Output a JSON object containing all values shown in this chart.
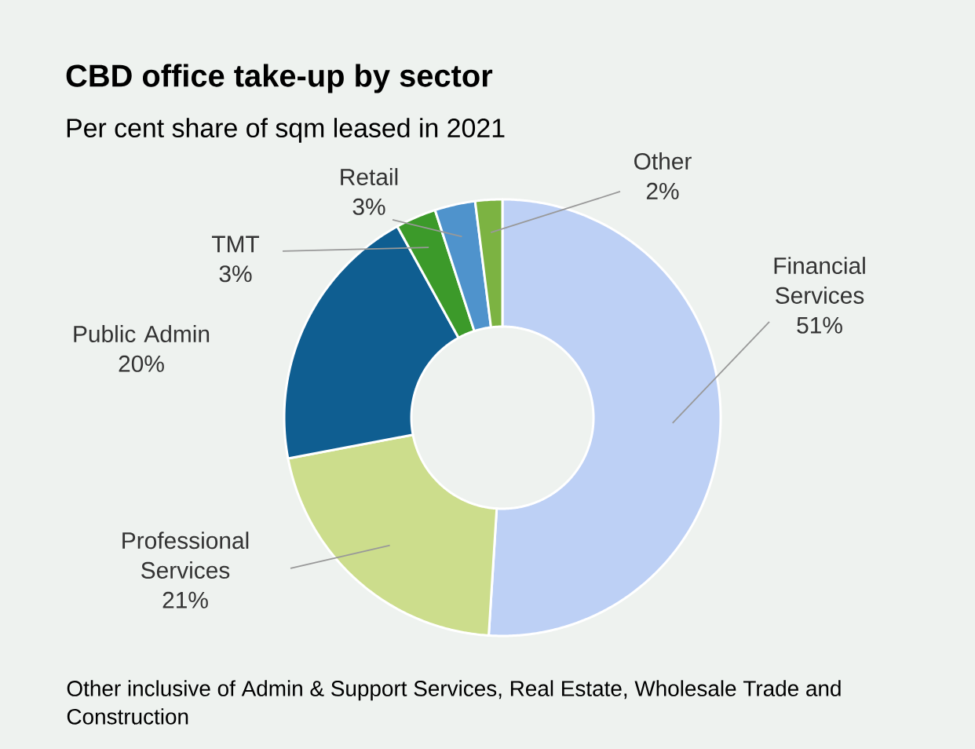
{
  "chart_data": {
    "type": "donut",
    "title": "CBD office take-up by sector",
    "subtitle": "Per cent share of sqm leased in 2021",
    "categories": [
      "Financial Services",
      "Professional Services",
      "Public Admin",
      "TMT",
      "Retail",
      "Other"
    ],
    "values": [
      51,
      21,
      20,
      3,
      3,
      2
    ],
    "value_labels": [
      "51%",
      "21%",
      "20%",
      "3%",
      "3%",
      "2%"
    ],
    "colors": [
      "#bdd0f5",
      "#ccdd8c",
      "#0f5e91",
      "#3c9a2a",
      "#4f93cc",
      "#7cb342"
    ],
    "annotations": [
      "Other inclusive of Admin & Support Services, Real Estate, Wholesale Trade and Construction"
    ]
  }
}
